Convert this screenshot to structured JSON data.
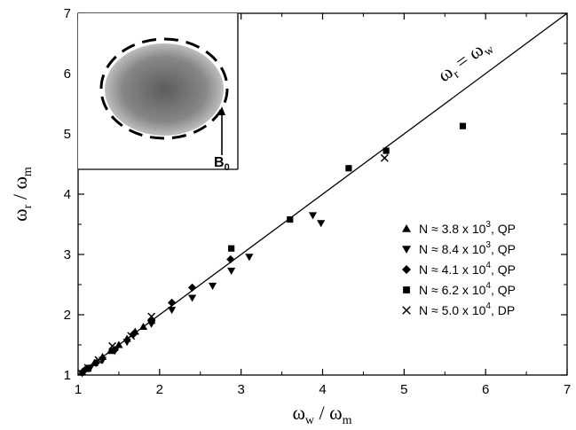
{
  "chart_data": {
    "type": "scatter",
    "title": "",
    "xlabel": {
      "main": "ω",
      "sub": "w",
      "sep": " / ",
      "main2": "ω",
      "sub2": "m"
    },
    "ylabel": {
      "main": "ω",
      "sub": "r",
      "sep": " / ",
      "main2": "ω",
      "sub2": "m"
    },
    "xlim": [
      1,
      7
    ],
    "ylim": [
      1,
      7
    ],
    "xticks": [
      1,
      2,
      3,
      4,
      5,
      6,
      7
    ],
    "yticks": [
      1,
      2,
      3,
      4,
      5,
      6,
      7
    ],
    "grid": false,
    "legend_position": "right",
    "reference_line": {
      "label_main": "ω",
      "label_sub": "r",
      "label_eq": " = ",
      "label_main2": "ω",
      "label_sub2": "w",
      "x": [
        1,
        7
      ],
      "y": [
        1,
        7
      ]
    },
    "inset": {
      "label": "B",
      "label_sub": "0"
    },
    "series": [
      {
        "name": "N ≈ 3.8 x 10³, QP",
        "legend": {
          "prefix": "N ≈ 3.8 x 10",
          "exp": "3",
          "suffix": ", QP"
        },
        "marker": "triangle-up",
        "points": [
          [
            1.05,
            1.05
          ],
          [
            1.1,
            1.1
          ],
          [
            1.2,
            1.2
          ],
          [
            1.3,
            1.3
          ],
          [
            1.4,
            1.4
          ],
          [
            1.5,
            1.5
          ],
          [
            1.6,
            1.6
          ],
          [
            1.7,
            1.72
          ],
          [
            1.8,
            1.8
          ],
          [
            1.9,
            1.9
          ]
        ]
      },
      {
        "name": "N ≈ 8.4 x 10³, QP",
        "legend": {
          "prefix": "N ≈ 8.4 x 10",
          "exp": "3",
          "suffix": ", QP"
        },
        "marker": "triangle-down",
        "points": [
          [
            1.05,
            1.03
          ],
          [
            1.15,
            1.12
          ],
          [
            1.3,
            1.25
          ],
          [
            1.45,
            1.4
          ],
          [
            1.6,
            1.55
          ],
          [
            1.9,
            1.85
          ],
          [
            2.15,
            2.08
          ],
          [
            2.4,
            2.28
          ],
          [
            2.65,
            2.48
          ],
          [
            2.88,
            2.73
          ],
          [
            3.1,
            2.96
          ],
          [
            3.88,
            3.65
          ],
          [
            3.98,
            3.52
          ]
        ]
      },
      {
        "name": "N ≈ 4.1 x 10⁴, QP",
        "legend": {
          "prefix": "N ≈ 4.1 x 10",
          "exp": "4",
          "suffix": ", QP"
        },
        "marker": "diamond",
        "points": [
          [
            1.08,
            1.08
          ],
          [
            1.22,
            1.2
          ],
          [
            1.45,
            1.42
          ],
          [
            1.68,
            1.68
          ],
          [
            1.9,
            1.9
          ],
          [
            2.15,
            2.2
          ],
          [
            2.4,
            2.45
          ],
          [
            2.87,
            2.92
          ]
        ]
      },
      {
        "name": "N ≈ 6.2 x 10⁴, QP",
        "legend": {
          "prefix": "N ≈ 6.2 x 10",
          "exp": "4",
          "suffix": ", QP"
        },
        "marker": "square",
        "points": [
          [
            2.88,
            3.1
          ],
          [
            3.6,
            3.58
          ],
          [
            4.32,
            4.43
          ],
          [
            4.78,
            4.72
          ],
          [
            5.72,
            5.13
          ]
        ]
      },
      {
        "name": "N ≈ 5.0 x 10⁴, DP",
        "legend": {
          "prefix": "N ≈ 5.0 x 10",
          "exp": "4",
          "suffix": ", DP"
        },
        "marker": "cross",
        "points": [
          [
            1.12,
            1.12
          ],
          [
            1.25,
            1.25
          ],
          [
            1.42,
            1.48
          ],
          [
            1.65,
            1.65
          ],
          [
            1.9,
            1.97
          ],
          [
            4.76,
            4.6
          ]
        ]
      }
    ]
  }
}
